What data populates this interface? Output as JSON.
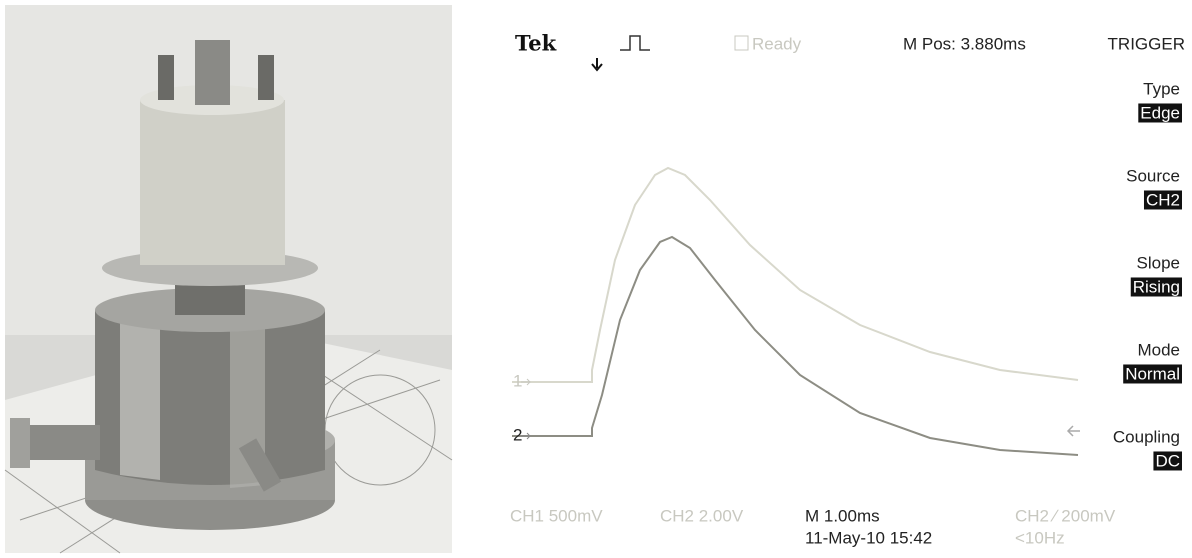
{
  "scope": {
    "brand": "Tek",
    "status": "Ready",
    "position": "M Pos: 3.880ms",
    "menu_title": "TRIGGER",
    "menu": [
      {
        "label": "Type",
        "value": "Edge"
      },
      {
        "label": "Source",
        "value": "CH2"
      },
      {
        "label": "Slope",
        "value": "Rising"
      },
      {
        "label": "Mode",
        "value": "Normal"
      },
      {
        "label": "Coupling",
        "value": "DC"
      }
    ],
    "channel_markers": [
      "1",
      "2"
    ],
    "footer": {
      "ch1": "CH1  500mV",
      "ch2": "CH2  2.00V",
      "timebase": "M 1.00ms",
      "trigger": "CH2 ∕ 200mV",
      "date": "11-May-10 15:42",
      "frequency": "<10Hz"
    }
  }
}
